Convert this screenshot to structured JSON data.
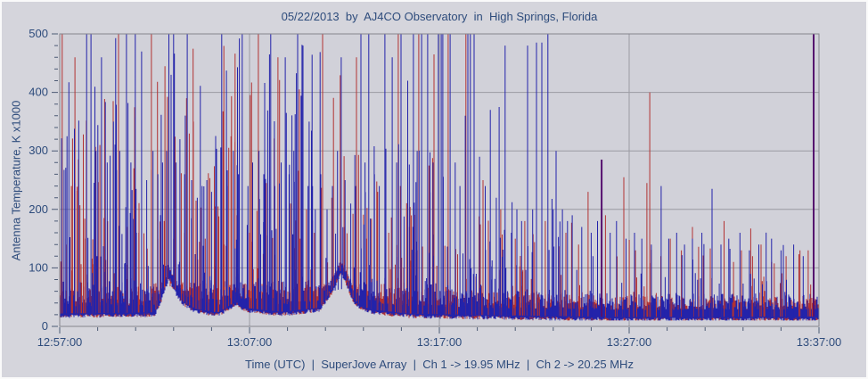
{
  "window": {
    "title": "05/22/2013  by  AJ4CO Observatory  in  High Springs, Florida"
  },
  "chart_data": {
    "type": "line",
    "title": "05/22/2013  by  AJ4CO Observatory  in  High Springs, Florida",
    "footer": "Time (UTC)  |  SuperJove Array  |  Ch 1 -> 19.95 MHz  |  Ch 2 -> 20.25 MHz",
    "ylabel": "Antenna Temperature, K x1000",
    "xlabel": "Time (UTC)",
    "xlim_seconds": [
      0,
      2400
    ],
    "ylim": [
      0,
      500
    ],
    "x_ticks": [
      {
        "label": "12:57:00",
        "t": 0
      },
      {
        "label": "13:07:00",
        "t": 600
      },
      {
        "label": "13:17:00",
        "t": 1200
      },
      {
        "label": "13:27:00",
        "t": 1800
      },
      {
        "label": "13:37:00",
        "t": 2400
      }
    ],
    "x_minor_step": 120,
    "y_ticks": [
      0,
      100,
      200,
      300,
      400,
      500
    ],
    "y_minor_step": 20,
    "grid": {
      "h_lines": [
        100,
        200,
        300,
        400
      ],
      "v_lines": [
        600,
        1200,
        1800
      ]
    },
    "colors": {
      "ch1": "#b23232",
      "ch2": "#2323aa",
      "overlap": "#55106e",
      "plot_bg": "#d1d1d9",
      "canvas_bg": "#d5d5dc",
      "grid": "#9a9aa2",
      "border": "#85858d",
      "text": "#2e4c7c",
      "tick": "#4c5a74"
    },
    "seed": 1337,
    "baseline_points": [
      [
        0,
        30
      ],
      [
        300,
        32
      ],
      [
        322,
        58
      ],
      [
        345,
        95
      ],
      [
        362,
        74
      ],
      [
        385,
        52
      ],
      [
        430,
        38
      ],
      [
        500,
        32
      ],
      [
        538,
        44
      ],
      [
        560,
        52
      ],
      [
        582,
        40
      ],
      [
        700,
        33
      ],
      [
        820,
        40
      ],
      [
        862,
        72
      ],
      [
        888,
        104
      ],
      [
        905,
        88
      ],
      [
        925,
        58
      ],
      [
        950,
        44
      ],
      [
        985,
        37
      ],
      [
        1100,
        30
      ],
      [
        1400,
        27
      ],
      [
        1800,
        24
      ],
      [
        2400,
        25
      ]
    ],
    "noise_amp_points": [
      [
        0,
        42
      ],
      [
        900,
        40
      ],
      [
        1000,
        34
      ],
      [
        1500,
        28
      ],
      [
        2400,
        25
      ]
    ],
    "series": [
      {
        "name": "Ch 1 -> 19.95 MHz",
        "color_key": "ch1",
        "major_spikes": [
          [
            8,
            500
          ],
          [
            22,
            140
          ],
          [
            37,
            240
          ],
          [
            59,
            240
          ],
          [
            80,
            150
          ],
          [
            110,
            200
          ],
          [
            140,
            160
          ],
          [
            169,
            385
          ],
          [
            186,
            500
          ],
          [
            215,
            170
          ],
          [
            250,
            160
          ],
          [
            290,
            500
          ],
          [
            310,
            150
          ],
          [
            330,
            180
          ],
          [
            360,
            150
          ],
          [
            395,
            160
          ],
          [
            431,
            215
          ],
          [
            460,
            150
          ],
          [
            490,
            205
          ],
          [
            520,
            140
          ],
          [
            560,
            190
          ],
          [
            600,
            160
          ],
          [
            628,
            500
          ],
          [
            653,
            245
          ],
          [
            690,
            460
          ],
          [
            730,
            210
          ],
          [
            760,
            150
          ],
          [
            780,
            200
          ],
          [
            805,
            160
          ],
          [
            831,
            500
          ],
          [
            860,
            220
          ],
          [
            900,
            170
          ],
          [
            938,
            460
          ],
          [
            970,
            150
          ],
          [
            1005,
            230
          ],
          [
            1040,
            160
          ],
          [
            1070,
            500
          ],
          [
            1105,
            170
          ],
          [
            1135,
            500
          ],
          [
            1183,
            465
          ],
          [
            1228,
            500
          ],
          [
            1284,
            500
          ],
          [
            1338,
            250
          ],
          [
            1394,
            200
          ],
          [
            1440,
            150
          ],
          [
            1470,
            180
          ],
          [
            1535,
            180
          ],
          [
            1600,
            160
          ],
          [
            1640,
            140
          ],
          [
            1670,
            230
          ],
          [
            1725,
            190
          ],
          [
            1783,
            255
          ],
          [
            1820,
            130
          ],
          [
            1856,
            245
          ],
          [
            1865,
            400
          ],
          [
            1900,
            120
          ],
          [
            1930,
            150
          ],
          [
            1965,
            130
          ],
          [
            2000,
            170
          ],
          [
            2035,
            120
          ],
          [
            2062,
            150
          ],
          [
            2100,
            180
          ],
          [
            2130,
            110
          ],
          [
            2155,
            130
          ],
          [
            2190,
            120
          ],
          [
            2217,
            140
          ],
          [
            2250,
            110
          ],
          [
            2296,
            120
          ],
          [
            2340,
            130
          ],
          [
            2366,
            130
          ]
        ],
        "texture": [
          [
            0,
            900,
            120,
            60,
            480
          ],
          [
            900,
            1260,
            50,
            60,
            300
          ],
          [
            1260,
            1620,
            40,
            50,
            220
          ],
          [
            1620,
            2400,
            45,
            40,
            170
          ]
        ]
      },
      {
        "name": "Ch 2 -> 20.25 MHz",
        "color_key": "ch2",
        "major_spikes": [
          [
            85,
            500
          ],
          [
            99,
            500
          ],
          [
            115,
            300
          ],
          [
            132,
            460
          ],
          [
            150,
            280
          ],
          [
            170,
            350
          ],
          [
            190,
            300
          ],
          [
            211,
            500
          ],
          [
            225,
            280
          ],
          [
            239,
            500
          ],
          [
            259,
            470
          ],
          [
            275,
            250
          ],
          [
            295,
            300
          ],
          [
            310,
            260
          ],
          [
            325,
            280
          ],
          [
            338,
            300
          ],
          [
            345,
            500
          ],
          [
            352,
            430
          ],
          [
            360,
            500
          ],
          [
            368,
            280
          ],
          [
            380,
            320
          ],
          [
            395,
            260
          ],
          [
            403,
            500
          ],
          [
            417,
            250
          ],
          [
            435,
            220
          ],
          [
            450,
            240
          ],
          [
            465,
            250
          ],
          [
            480,
            230
          ],
          [
            495,
            260
          ],
          [
            512,
            500
          ],
          [
            530,
            240
          ],
          [
            549,
            300
          ],
          [
            565,
            260
          ],
          [
            577,
            500
          ],
          [
            595,
            240
          ],
          [
            610,
            280
          ],
          [
            630,
            300
          ],
          [
            645,
            260
          ],
          [
            667,
            500
          ],
          [
            680,
            240
          ],
          [
            700,
            280
          ],
          [
            713,
            460
          ],
          [
            725,
            260
          ],
          [
            740,
            300
          ],
          [
            752,
            500
          ],
          [
            769,
            480
          ],
          [
            785,
            240
          ],
          [
            808,
            200
          ],
          [
            825,
            260
          ],
          [
            845,
            200
          ],
          [
            862,
            240
          ],
          [
            878,
            300
          ],
          [
            890,
            460
          ],
          [
            902,
            250
          ],
          [
            920,
            210
          ],
          [
            935,
            240
          ],
          [
            952,
            500
          ],
          [
            965,
            280
          ],
          [
            977,
            500
          ],
          [
            995,
            260
          ],
          [
            1010,
            240
          ],
          [
            1028,
            500
          ],
          [
            1051,
            460
          ],
          [
            1065,
            280
          ],
          [
            1079,
            500
          ],
          [
            1100,
            420
          ],
          [
            1118,
            500
          ],
          [
            1130,
            300
          ],
          [
            1144,
            500
          ],
          [
            1163,
            500
          ],
          [
            1180,
            280
          ],
          [
            1197,
            500
          ],
          [
            1206,
            500
          ],
          [
            1211,
            500
          ],
          [
            1234,
            500
          ],
          [
            1250,
            280
          ],
          [
            1265,
            240
          ],
          [
            1282,
            360
          ],
          [
            1290,
            500
          ],
          [
            1298,
            500
          ],
          [
            1310,
            500
          ],
          [
            1327,
            290
          ],
          [
            1345,
            240
          ],
          [
            1361,
            370
          ],
          [
            1380,
            220
          ],
          [
            1389,
            375
          ],
          [
            1408,
            480
          ],
          [
            1428,
            160
          ],
          [
            1445,
            200
          ],
          [
            1460,
            180
          ],
          [
            1479,
            480
          ],
          [
            1495,
            200
          ],
          [
            1507,
            485
          ],
          [
            1524,
            485
          ],
          [
            1543,
            500
          ],
          [
            1560,
            200
          ],
          [
            1569,
            300
          ],
          [
            1589,
            200
          ],
          [
            1605,
            180
          ],
          [
            1620,
            190
          ],
          [
            1650,
            170
          ],
          [
            1680,
            160
          ],
          [
            1700,
            180
          ],
          [
            1713,
            280
          ],
          [
            1740,
            160
          ],
          [
            1760,
            180
          ],
          [
            1790,
            150
          ],
          [
            1817,
            160
          ],
          [
            1840,
            150
          ],
          [
            1870,
            140
          ],
          [
            1901,
            240
          ],
          [
            1925,
            150
          ],
          [
            1950,
            160
          ],
          [
            1975,
            140
          ],
          [
            2000,
            150
          ],
          [
            2030,
            160
          ],
          [
            2062,
            235
          ],
          [
            2090,
            140
          ],
          [
            2115,
            150
          ],
          [
            2150,
            160
          ],
          [
            2180,
            130
          ],
          [
            2210,
            140
          ],
          [
            2250,
            150
          ],
          [
            2280,
            130
          ],
          [
            2320,
            140
          ],
          [
            2350,
            120
          ]
        ],
        "texture": [
          [
            0,
            900,
            150,
            60,
            500
          ],
          [
            900,
            1260,
            60,
            60,
            320
          ],
          [
            1260,
            1620,
            42,
            50,
            220
          ],
          [
            1620,
            2400,
            45,
            40,
            170
          ]
        ]
      }
    ],
    "overlap_spikes": [
      [
        1713,
        285
      ],
      [
        2383,
        500
      ]
    ]
  }
}
